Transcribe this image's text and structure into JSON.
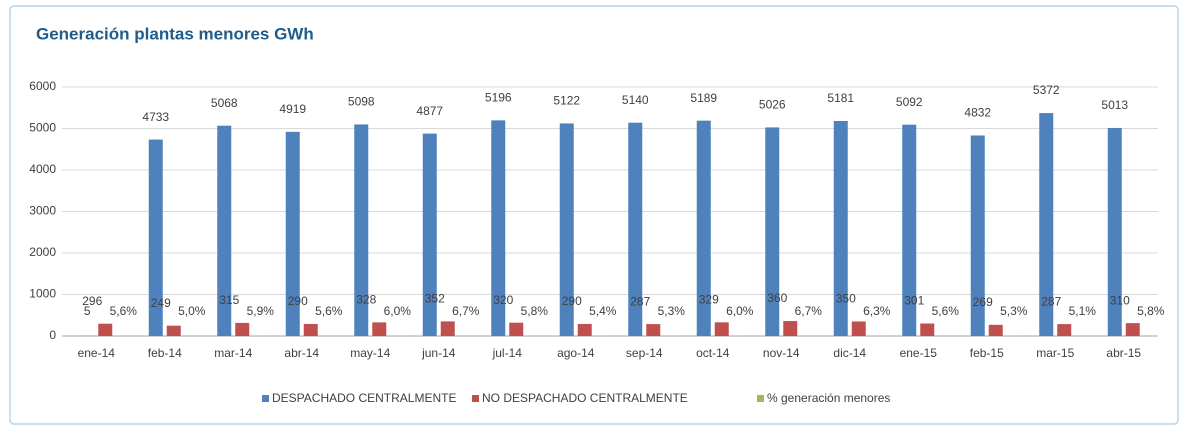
{
  "chart_data": {
    "type": "bar",
    "title": "Generación plantas menores GWh",
    "categories": [
      "ene-14",
      "feb-14",
      "mar-14",
      "abr-14",
      "may-14",
      "jun-14",
      "jul-14",
      "ago-14",
      "sep-14",
      "oct-14",
      "nov-14",
      "dic-14",
      "ene-15",
      "feb-15",
      "mar-15",
      "abr-15"
    ],
    "series": [
      {
        "name": "DESPACHADO CENTRALMENTE",
        "color": "#4f81bd",
        "values": [
          5,
          4733,
          5068,
          4919,
          5098,
          4877,
          5196,
          5122,
          5140,
          5189,
          5026,
          5181,
          5092,
          4832,
          5372,
          5013
        ]
      },
      {
        "name": "NO DESPACHADO CENTRALMENTE",
        "color": "#c0504d",
        "values": [
          296,
          249,
          315,
          290,
          328,
          352,
          320,
          290,
          287,
          329,
          360,
          350,
          301,
          269,
          287,
          310
        ]
      },
      {
        "name": "% generación menores",
        "color": "#9bbb59",
        "values": [
          5.6,
          5.0,
          5.9,
          5.6,
          6.0,
          6.7,
          5.8,
          5.4,
          5.3,
          6.0,
          6.7,
          6.3,
          5.6,
          5.3,
          5.1,
          5.8
        ],
        "value_labels": [
          "5,6%",
          "5,0%",
          "5,9%",
          "5,6%",
          "6,0%",
          "6,7%",
          "5,8%",
          "5,4%",
          "5,3%",
          "6,0%",
          "6,7%",
          "6,3%",
          "5,6%",
          "5,3%",
          "5,1%",
          "5,8%"
        ]
      }
    ],
    "ylim": [
      0,
      6000
    ],
    "yticks": [
      0,
      1000,
      2000,
      3000,
      4000,
      5000,
      6000
    ],
    "grid": true,
    "legend": "bottom"
  }
}
